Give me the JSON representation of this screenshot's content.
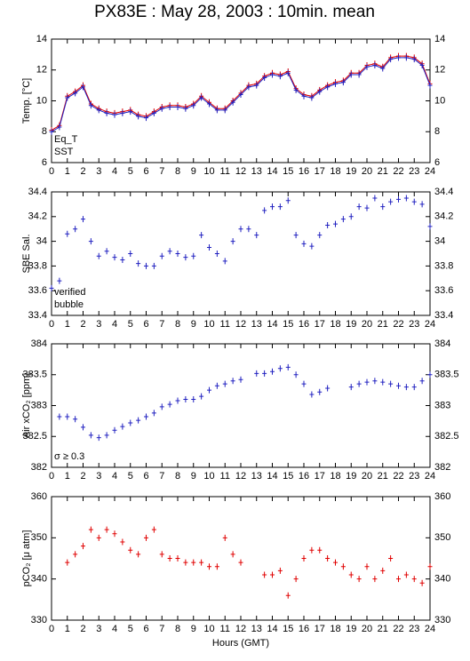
{
  "title": "PX83E : May 28, 2003 : 10min. mean",
  "chart_data": [
    {
      "type": "line",
      "ylabel": "Temp. [°C]",
      "ylim": [
        6,
        14
      ],
      "yticks": [
        6,
        8,
        10,
        12,
        14
      ],
      "xlim": [
        0,
        24
      ],
      "xticks": [
        0,
        1,
        2,
        3,
        4,
        5,
        6,
        7,
        8,
        9,
        10,
        11,
        12,
        13,
        14,
        15,
        16,
        17,
        18,
        19,
        20,
        21,
        22,
        23,
        24
      ],
      "x": [
        0,
        0.5,
        1,
        1.5,
        2,
        2.5,
        3,
        3.5,
        4,
        4.5,
        5,
        5.5,
        6,
        6.5,
        7,
        7.5,
        8,
        8.5,
        9,
        9.5,
        10,
        10.5,
        11,
        11.5,
        12,
        12.5,
        13,
        13.5,
        14,
        14.5,
        15,
        15.5,
        16,
        16.5,
        17,
        17.5,
        18,
        18.5,
        19,
        19.5,
        20,
        20.5,
        21,
        21.5,
        22,
        22.5,
        23,
        23.5,
        24
      ],
      "series": [
        {
          "name": "Eq_T",
          "color": "#e00000",
          "values": [
            8.1,
            8.4,
            10.3,
            10.6,
            11.0,
            9.8,
            9.5,
            9.3,
            9.2,
            9.3,
            9.4,
            9.1,
            9.0,
            9.3,
            9.6,
            9.7,
            9.7,
            9.6,
            9.8,
            10.3,
            9.9,
            9.5,
            9.5,
            10.0,
            10.5,
            11.0,
            11.1,
            11.6,
            11.8,
            11.7,
            11.9,
            10.8,
            10.4,
            10.3,
            10.7,
            11.0,
            11.2,
            11.3,
            11.8,
            11.8,
            12.3,
            12.4,
            12.2,
            12.8,
            12.9,
            12.9,
            12.8,
            12.4,
            11.1
          ]
        },
        {
          "name": "SST",
          "color": "#2020c0",
          "values": [
            8.0,
            8.3,
            10.2,
            10.5,
            10.9,
            9.7,
            9.4,
            9.2,
            9.1,
            9.2,
            9.3,
            9.0,
            8.9,
            9.2,
            9.5,
            9.6,
            9.6,
            9.5,
            9.7,
            10.2,
            9.8,
            9.4,
            9.4,
            9.9,
            10.4,
            10.9,
            11.0,
            11.5,
            11.7,
            11.6,
            11.8,
            10.7,
            10.3,
            10.2,
            10.6,
            10.9,
            11.1,
            11.2,
            11.7,
            11.7,
            12.2,
            12.3,
            12.1,
            12.7,
            12.8,
            12.8,
            12.7,
            12.3,
            11.0
          ]
        }
      ]
    },
    {
      "type": "scatter",
      "ylabel": "SBE Sal.",
      "ylim": [
        33.4,
        34.4
      ],
      "yticks": [
        33.4,
        33.6,
        33.8,
        34,
        34.2,
        34.4
      ],
      "xlim": [
        0,
        24
      ],
      "xticks": [
        0,
        1,
        2,
        3,
        4,
        5,
        6,
        7,
        8,
        9,
        10,
        11,
        12,
        13,
        14,
        15,
        16,
        17,
        18,
        19,
        20,
        21,
        22,
        23,
        24
      ],
      "x": [
        0,
        0.5,
        1,
        1.5,
        2,
        2.5,
        3,
        3.5,
        4,
        4.5,
        5,
        5.5,
        6,
        6.5,
        7,
        7.5,
        8,
        8.5,
        9,
        9.5,
        10,
        10.5,
        11,
        11.5,
        12,
        12.5,
        13,
        13.5,
        14,
        14.5,
        15,
        15.5,
        16,
        16.5,
        17,
        17.5,
        18,
        18.5,
        19,
        19.5,
        20,
        20.5,
        21,
        21.5,
        22,
        22.5,
        23,
        23.5,
        24
      ],
      "series": [
        {
          "name": "verified",
          "color": "#2020c0",
          "values": [
            33.62,
            33.68,
            34.06,
            34.1,
            34.18,
            34.0,
            33.88,
            33.92,
            33.87,
            33.85,
            33.9,
            33.82,
            33.8,
            33.8,
            33.88,
            33.92,
            33.9,
            33.87,
            33.88,
            34.05,
            33.95,
            33.9,
            33.84,
            34.0,
            34.1,
            34.1,
            34.05,
            34.25,
            34.28,
            34.28,
            34.33,
            34.05,
            33.98,
            33.96,
            34.05,
            34.13,
            34.14,
            34.18,
            34.2,
            34.28,
            34.27,
            34.35,
            34.28,
            34.32,
            34.34,
            34.35,
            34.32,
            34.3,
            34.12
          ]
        }
      ],
      "annotations": [
        {
          "text": "bubble",
          "color": "#c000c0"
        }
      ]
    },
    {
      "type": "scatter",
      "ylabel": "Air xCO₂ [ppm]",
      "ylim": [
        382,
        384
      ],
      "yticks": [
        382,
        382.5,
        383,
        383.5,
        384
      ],
      "xlim": [
        0,
        24
      ],
      "xticks": [
        0,
        1,
        2,
        3,
        4,
        5,
        6,
        7,
        8,
        9,
        10,
        11,
        12,
        13,
        14,
        15,
        16,
        17,
        18,
        19,
        20,
        21,
        22,
        23,
        24
      ],
      "x": [
        0,
        0.5,
        1,
        1.5,
        2,
        2.5,
        3,
        3.5,
        4,
        4.5,
        5,
        5.5,
        6,
        6.5,
        7,
        7.5,
        8,
        8.5,
        9,
        9.5,
        10,
        10.5,
        11,
        11.5,
        12,
        12.5,
        13,
        13.5,
        14,
        14.5,
        15,
        15.5,
        16,
        16.5,
        17,
        17.5,
        18,
        18.5,
        19,
        19.5,
        20,
        20.5,
        21,
        21.5,
        22,
        22.5,
        23,
        23.5,
        24
      ],
      "series": [
        {
          "color": "#2020c0",
          "values": [
            null,
            382.82,
            382.82,
            382.78,
            382.65,
            382.52,
            382.48,
            382.52,
            382.6,
            382.66,
            382.72,
            382.76,
            382.82,
            382.88,
            382.98,
            383.02,
            383.08,
            383.1,
            383.1,
            383.15,
            383.25,
            383.32,
            383.35,
            383.4,
            383.42,
            null,
            383.52,
            383.52,
            383.55,
            383.6,
            383.62,
            383.5,
            383.35,
            383.18,
            383.22,
            383.28,
            null,
            null,
            383.3,
            383.35,
            383.38,
            383.4,
            383.38,
            383.35,
            383.32,
            383.3,
            383.3,
            383.4,
            383.5
          ]
        }
      ],
      "annotations": [
        {
          "text": "σ ≥ 0.3",
          "color": "#c000c0"
        }
      ]
    },
    {
      "type": "scatter",
      "ylabel": "pCO₂ [μ atm]",
      "xlabel": "Hours (GMT)",
      "ylim": [
        330,
        360
      ],
      "yticks": [
        330,
        340,
        350,
        360
      ],
      "xlim": [
        0,
        24
      ],
      "xticks": [
        0,
        1,
        2,
        3,
        4,
        5,
        6,
        7,
        8,
        9,
        10,
        11,
        12,
        13,
        14,
        15,
        16,
        17,
        18,
        19,
        20,
        21,
        22,
        23,
        24
      ],
      "x": [
        0,
        0.5,
        1,
        1.5,
        2,
        2.5,
        3,
        3.5,
        4,
        4.5,
        5,
        5.5,
        6,
        6.5,
        7,
        7.5,
        8,
        8.5,
        9,
        9.5,
        10,
        10.5,
        11,
        11.5,
        12,
        12.5,
        13,
        13.5,
        14,
        14.5,
        15,
        15.5,
        16,
        16.5,
        17,
        17.5,
        18,
        18.5,
        19,
        19.5,
        20,
        20.5,
        21,
        21.5,
        22,
        22.5,
        23,
        23.5,
        24
      ],
      "series": [
        {
          "color": "#e00000",
          "values": [
            null,
            null,
            344,
            346,
            348,
            352,
            350,
            352,
            351,
            349,
            347,
            346,
            350,
            352,
            346,
            345,
            345,
            344,
            344,
            344,
            343,
            343,
            350,
            346,
            344,
            null,
            null,
            341,
            341,
            342,
            336,
            340,
            345,
            347,
            347,
            345,
            344,
            343,
            341,
            340,
            343,
            340,
            342,
            345,
            340,
            341,
            340,
            339,
            343
          ]
        }
      ]
    }
  ]
}
